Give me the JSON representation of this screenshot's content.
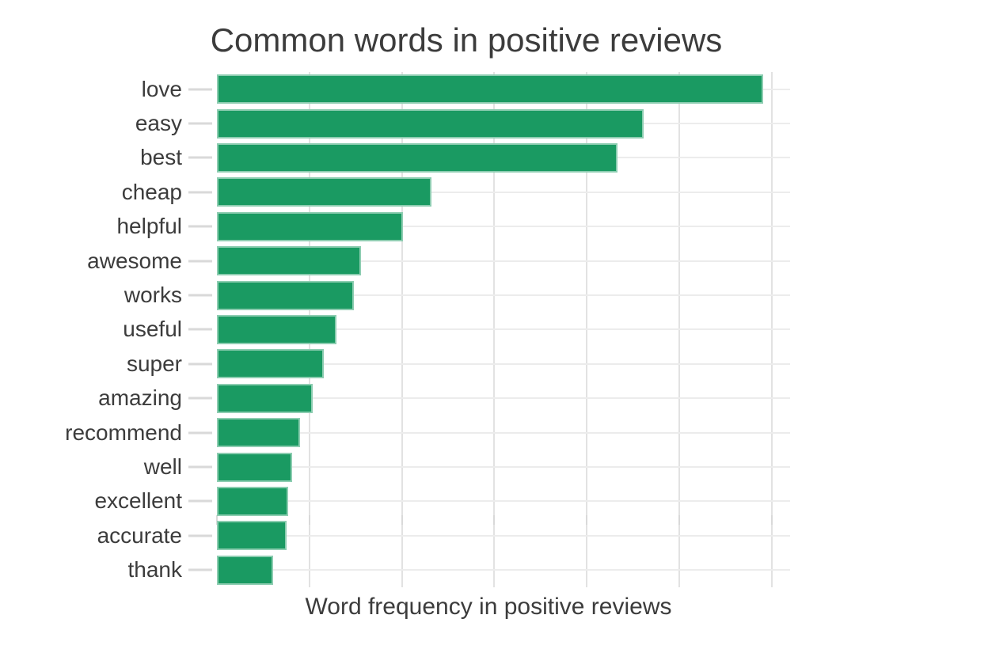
{
  "window": {
    "background": "#ffffff"
  },
  "chart_data": {
    "type": "bar",
    "orientation": "horizontal",
    "title": "Common words in positive reviews",
    "xlabel": "Word frequency in positive reviews",
    "ylabel": "",
    "categories": [
      "love",
      "easy",
      "best",
      "cheap",
      "helpful",
      "awesome",
      "works",
      "useful",
      "super",
      "amazing",
      "recommend",
      "well",
      "excellent",
      "accurate",
      "thank"
    ],
    "values": [
      5.91,
      4.62,
      4.33,
      2.32,
      2.01,
      1.56,
      1.48,
      1.29,
      1.16,
      1.04,
      0.9,
      0.81,
      0.77,
      0.75,
      0.61
    ],
    "xlim": [
      0,
      6.2
    ],
    "x_gridline_positions": [
      1,
      2,
      3,
      4,
      5,
      6
    ],
    "x_tick_labels": [],
    "y_tick_labels_shown": true,
    "grid": true,
    "legend": false,
    "note": "x-axis gridlines carry no numeric labels; bar values estimated in gridline units"
  },
  "colors": {
    "bar": "#1a9a62",
    "bar_edge": "rgba(255,255,255,0.5)",
    "text": "#3c3c3c",
    "gridline_vertical": "#e2e2e2",
    "gridline_horizontal": "#ececec",
    "tick": "#d9d9d9",
    "background": "#ffffff"
  }
}
